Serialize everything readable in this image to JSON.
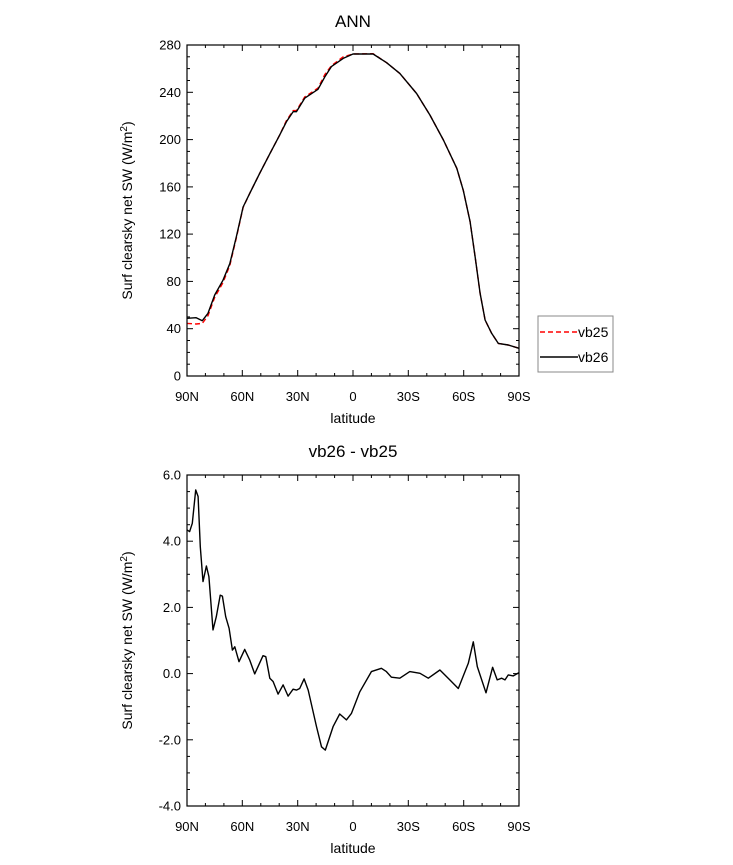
{
  "chart_data": [
    {
      "type": "line",
      "title": "ANN",
      "xlabel": "latitude",
      "ylabel": "Surf clearsky net SW (W/m",
      "ylabel_sup": "2",
      "ylabel_end": ")",
      "xlim": [
        90,
        -90
      ],
      "ylim": [
        0,
        280
      ],
      "xticks": [
        90,
        60,
        30,
        0,
        -30,
        -60,
        -90
      ],
      "xtick_labels": [
        "90N",
        "60N",
        "30N",
        "0",
        "30S",
        "60S",
        "90S"
      ],
      "yticks": [
        0,
        40,
        80,
        120,
        160,
        200,
        240,
        280
      ],
      "ytick_labels": [
        "0",
        "40",
        "80",
        "120",
        "160",
        "200",
        "240",
        "280"
      ],
      "legend": {
        "placement": "right",
        "entries": [
          "vb25",
          "vb26"
        ]
      },
      "series": [
        {
          "name": "vb25",
          "color": "#ff0000",
          "dash": "dashed",
          "x": [
            90,
            85,
            81.7,
            78.6,
            75,
            70.5,
            66.8,
            63.2,
            59.6,
            56,
            50.6,
            45.1,
            39.7,
            36.1,
            32.5,
            30.7,
            26.2,
            19,
            15.3,
            11.7,
            5.3,
            0,
            -10.9,
            -18.2,
            -25.4,
            -34.5,
            -41.7,
            -49,
            -56.3,
            -59.8,
            -63.5,
            -66.2,
            -68.9,
            -71.6,
            -75.2,
            -78.8,
            -84.2,
            -90
          ],
          "y": [
            44.5,
            44,
            44.5,
            51,
            66.5,
            79,
            93.5,
            117,
            142.5,
            154.5,
            171.5,
            188,
            204,
            216,
            224.5,
            224.5,
            236,
            243.5,
            255,
            262.5,
            270,
            272.4,
            272.6,
            265,
            256,
            239,
            220.8,
            199.6,
            175.7,
            157,
            130.5,
            101,
            70,
            47.4,
            36,
            27.6,
            26.2,
            23.4
          ]
        },
        {
          "name": "vb26",
          "color": "#000000",
          "dash": "solid",
          "x": [
            90,
            85,
            81.7,
            78.6,
            75,
            70.5,
            66.8,
            63.2,
            59.6,
            56,
            50.6,
            45.1,
            39.7,
            36.1,
            32.5,
            30.7,
            26.2,
            19,
            15.3,
            11.7,
            5.3,
            0,
            -10.9,
            -18.2,
            -25.4,
            -34.5,
            -41.7,
            -49,
            -56.3,
            -59.8,
            -63.5,
            -66.2,
            -68.9,
            -71.6,
            -75.2,
            -78.8,
            -84.2,
            -90
          ],
          "y": [
            48.8,
            49.3,
            46.8,
            53,
            68.5,
            81,
            95,
            118,
            143,
            154.5,
            171.5,
            188,
            204,
            215,
            223.6,
            223.6,
            235,
            242.5,
            253,
            261.7,
            268.7,
            272.4,
            272.4,
            265,
            256,
            239,
            220.8,
            199.6,
            175.7,
            157,
            130.5,
            101,
            70,
            47.4,
            36,
            27.6,
            26.2,
            23.4
          ]
        }
      ]
    },
    {
      "type": "line",
      "title": "vb26 - vb25",
      "xlabel": "latitude",
      "ylabel": "Surf clearsky net SW (W/m",
      "ylabel_sup": "2",
      "ylabel_end": ")",
      "xlim": [
        90,
        -90
      ],
      "ylim": [
        -4.0,
        6.0
      ],
      "xticks": [
        90,
        60,
        30,
        0,
        -30,
        -60,
        -90
      ],
      "xtick_labels": [
        "90N",
        "60N",
        "30N",
        "0",
        "30S",
        "60S",
        "90S"
      ],
      "yticks": [
        -4,
        -2,
        0,
        2,
        4,
        6
      ],
      "ytick_labels": [
        "-4.0",
        "-2.0",
        "0.0",
        "2.0",
        "4.0",
        "6.0"
      ],
      "series": [
        {
          "name": "vb26 - vb25",
          "color": "#000000",
          "dash": "solid",
          "x": [
            90,
            88.6,
            87.1,
            85.3,
            84,
            82.8,
            81.3,
            79.5,
            78.1,
            75.9,
            74.1,
            72,
            70.8,
            69,
            67.2,
            65.4,
            64.1,
            61.8,
            58.7,
            56,
            53.3,
            48.8,
            47.3,
            45.1,
            43.3,
            40.6,
            37.9,
            35.2,
            32.5,
            30.7,
            28.9,
            26.5,
            24.3,
            19.8,
            17.1,
            15,
            10.8,
            7.2,
            3.6,
            0.8,
            -3.7,
            -10,
            -15.4,
            -18.1,
            -20.8,
            -25.4,
            -30.8,
            -36.3,
            -40.8,
            -47.1,
            -52.5,
            -57.1,
            -62.5,
            -65.2,
            -67.4,
            -72.1,
            -75.7,
            -78.2,
            -80.6,
            -82.4,
            -84.2,
            -86.9,
            -90
          ],
          "y": [
            4.34,
            4.29,
            4.54,
            5.55,
            5.35,
            3.83,
            2.78,
            3.25,
            2.93,
            1.32,
            1.72,
            2.37,
            2.34,
            1.72,
            1.37,
            0.71,
            0.81,
            0.36,
            0.73,
            0.41,
            -0.01,
            0.54,
            0.51,
            -0.14,
            -0.24,
            -0.62,
            -0.34,
            -0.68,
            -0.47,
            -0.5,
            -0.45,
            -0.16,
            -0.5,
            -1.6,
            -2.21,
            -2.31,
            -1.6,
            -1.22,
            -1.4,
            -1.2,
            -0.55,
            0.06,
            0.16,
            0.06,
            -0.11,
            -0.14,
            0.06,
            0.01,
            -0.14,
            0.11,
            -0.19,
            -0.45,
            0.31,
            0.96,
            0.21,
            -0.58,
            0.19,
            -0.19,
            -0.14,
            -0.19,
            -0.04,
            -0.07,
            0.03
          ]
        }
      ]
    }
  ]
}
